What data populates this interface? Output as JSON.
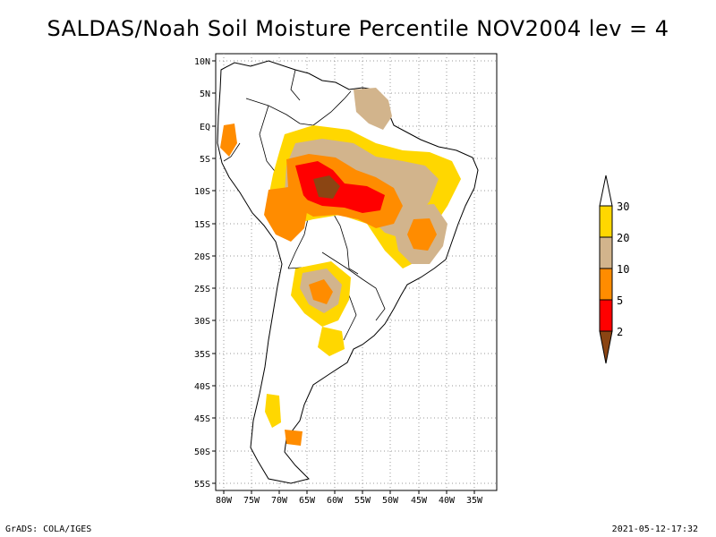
{
  "title": "SALDAS/Noah Soil Moisture Percentile NOV2004 lev = 4",
  "axes": {
    "lat_labels": [
      "10N",
      "5N",
      "EQ",
      "5S",
      "10S",
      "15S",
      "20S",
      "25S",
      "30S",
      "35S",
      "40S",
      "45S",
      "50S",
      "55S"
    ],
    "lon_labels": [
      "80W",
      "75W",
      "70W",
      "65W",
      "60W",
      "55W",
      "50W",
      "45W",
      "40W",
      "35W"
    ],
    "lat_range": [
      10.5,
      -55.5
    ],
    "lon_range": [
      -81,
      -31
    ],
    "grid": "dotted"
  },
  "colorbar": {
    "labels": [
      "30",
      "20",
      "10",
      "5",
      "2"
    ],
    "colors": {
      "above30": "#ffffff",
      "c20_30": "#ffd700",
      "c10_20": "#d2b48c",
      "c5_10": "#ff8c00",
      "c2_5": "#ff0000",
      "below2": "#8b4513"
    }
  },
  "footer": {
    "left": "GrADS: COLA/IGES",
    "right": "2021-05-12-17:32"
  }
}
